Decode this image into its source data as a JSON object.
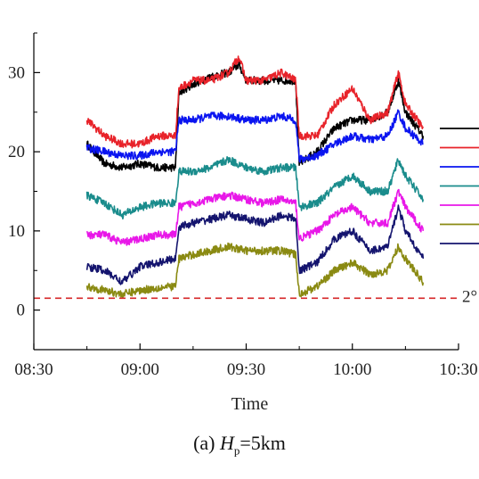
{
  "chart_data": {
    "type": "line",
    "xlabel": "Time",
    "x_range": [
      "08:30",
      "10:30"
    ],
    "x_ticks": [
      "08:30",
      "09:00",
      "09:30",
      "10:00",
      "10:30"
    ],
    "ylim": [
      -5,
      35
    ],
    "y_ticks": [
      0,
      10,
      20,
      30
    ],
    "grid": false,
    "legend_position": "right",
    "threshold": {
      "y": 1.5,
      "label": "2°",
      "color": "#d62728",
      "style": "dashed"
    },
    "series": [
      {
        "color": "#000000",
        "x": [
          "08:45",
          "08:50",
          "08:55",
          "09:00",
          "09:05",
          "09:10",
          "09:11",
          "09:15",
          "09:20",
          "09:25",
          "09:28",
          "09:30",
          "09:35",
          "09:40",
          "09:44",
          "09:45",
          "09:50",
          "09:55",
          "10:00",
          "10:05",
          "10:10",
          "10:13",
          "10:15",
          "10:20"
        ],
        "y": [
          21,
          18.5,
          18,
          18.5,
          18,
          18,
          27.5,
          28.5,
          29.5,
          30,
          31,
          29,
          29,
          29,
          29,
          18.5,
          20,
          23,
          24,
          24,
          25,
          29,
          25,
          22
        ]
      },
      {
        "color": "#e8232a",
        "x": [
          "08:45",
          "08:50",
          "08:55",
          "09:00",
          "09:05",
          "09:10",
          "09:11",
          "09:15",
          "09:20",
          "09:25",
          "09:28",
          "09:30",
          "09:35",
          "09:40",
          "09:44",
          "09:45",
          "09:50",
          "09:55",
          "10:00",
          "10:05",
          "10:10",
          "10:13",
          "10:15",
          "10:20"
        ],
        "y": [
          24,
          22,
          21,
          21,
          22,
          22,
          28,
          29,
          29,
          30,
          32,
          29,
          29,
          30,
          29,
          22,
          22,
          26,
          28,
          24,
          25,
          30,
          26,
          23
        ]
      },
      {
        "color": "#0a14f0",
        "x": [
          "08:45",
          "08:50",
          "08:55",
          "09:00",
          "09:05",
          "09:10",
          "09:11",
          "09:15",
          "09:20",
          "09:25",
          "09:30",
          "09:35",
          "09:40",
          "09:44",
          "09:45",
          "09:50",
          "09:55",
          "10:00",
          "10:05",
          "10:10",
          "10:13",
          "10:15",
          "10:20"
        ],
        "y": [
          20.5,
          20,
          19.5,
          19.5,
          20,
          20,
          24,
          24,
          24.5,
          24.5,
          24,
          24,
          24.5,
          24,
          19,
          19.5,
          21,
          22,
          21.5,
          22,
          25,
          23,
          21
        ]
      },
      {
        "color": "#1a8c8c",
        "x": [
          "08:45",
          "08:50",
          "08:55",
          "09:00",
          "09:05",
          "09:10",
          "09:11",
          "09:15",
          "09:20",
          "09:25",
          "09:30",
          "09:35",
          "09:40",
          "09:44",
          "09:45",
          "09:50",
          "09:55",
          "10:00",
          "10:05",
          "10:10",
          "10:13",
          "10:15",
          "10:20"
        ],
        "y": [
          14.5,
          13.5,
          12,
          13,
          13.5,
          13.5,
          17.5,
          17.5,
          18,
          19,
          18,
          17.5,
          18,
          18,
          13,
          13.5,
          15.5,
          17,
          15,
          15,
          19,
          17,
          14
        ]
      },
      {
        "color": "#e817e8",
        "x": [
          "08:45",
          "08:50",
          "08:55",
          "09:00",
          "09:05",
          "09:10",
          "09:11",
          "09:15",
          "09:20",
          "09:25",
          "09:30",
          "09:35",
          "09:40",
          "09:44",
          "09:45",
          "09:50",
          "09:55",
          "10:00",
          "10:05",
          "10:10",
          "10:13",
          "10:15",
          "10:20"
        ],
        "y": [
          9.5,
          9.5,
          8.5,
          9,
          9.5,
          9.5,
          13,
          13.5,
          14,
          14.5,
          14,
          13.5,
          14,
          13.5,
          9,
          10,
          12,
          13,
          11,
          11,
          15,
          13,
          10
        ]
      },
      {
        "color": "#8a8a12",
        "x": [
          "08:45",
          "08:50",
          "08:55",
          "09:00",
          "09:05",
          "09:10",
          "09:11",
          "09:15",
          "09:20",
          "09:25",
          "09:30",
          "09:35",
          "09:40",
          "09:44",
          "09:45",
          "09:50",
          "09:55",
          "10:00",
          "10:05",
          "10:10",
          "10:13",
          "10:15",
          "10:20"
        ],
        "y": [
          3,
          2.5,
          2,
          2.5,
          2.8,
          3,
          6.5,
          7,
          7.5,
          8,
          7.5,
          7.5,
          7.5,
          7,
          2,
          3,
          5,
          6,
          4.5,
          5,
          8,
          6.5,
          3.5
        ]
      },
      {
        "color": "#14146e",
        "x": [
          "08:45",
          "08:50",
          "08:55",
          "09:00",
          "09:05",
          "09:10",
          "09:11",
          "09:15",
          "09:20",
          "09:25",
          "09:30",
          "09:35",
          "09:40",
          "09:44",
          "09:45",
          "09:50",
          "09:55",
          "10:00",
          "10:05",
          "10:10",
          "10:13",
          "10:15",
          "10:20"
        ],
        "y": [
          5.5,
          5,
          3.5,
          5.5,
          6,
          6.5,
          10.5,
          11,
          11.5,
          12,
          11.5,
          11,
          12,
          11.5,
          5,
          6,
          9,
          10,
          7.5,
          8,
          13,
          10,
          6.5
        ]
      }
    ]
  },
  "caption": {
    "prefix": "(a) ",
    "var": "H",
    "sub": "p",
    "suffix": "=5km"
  }
}
